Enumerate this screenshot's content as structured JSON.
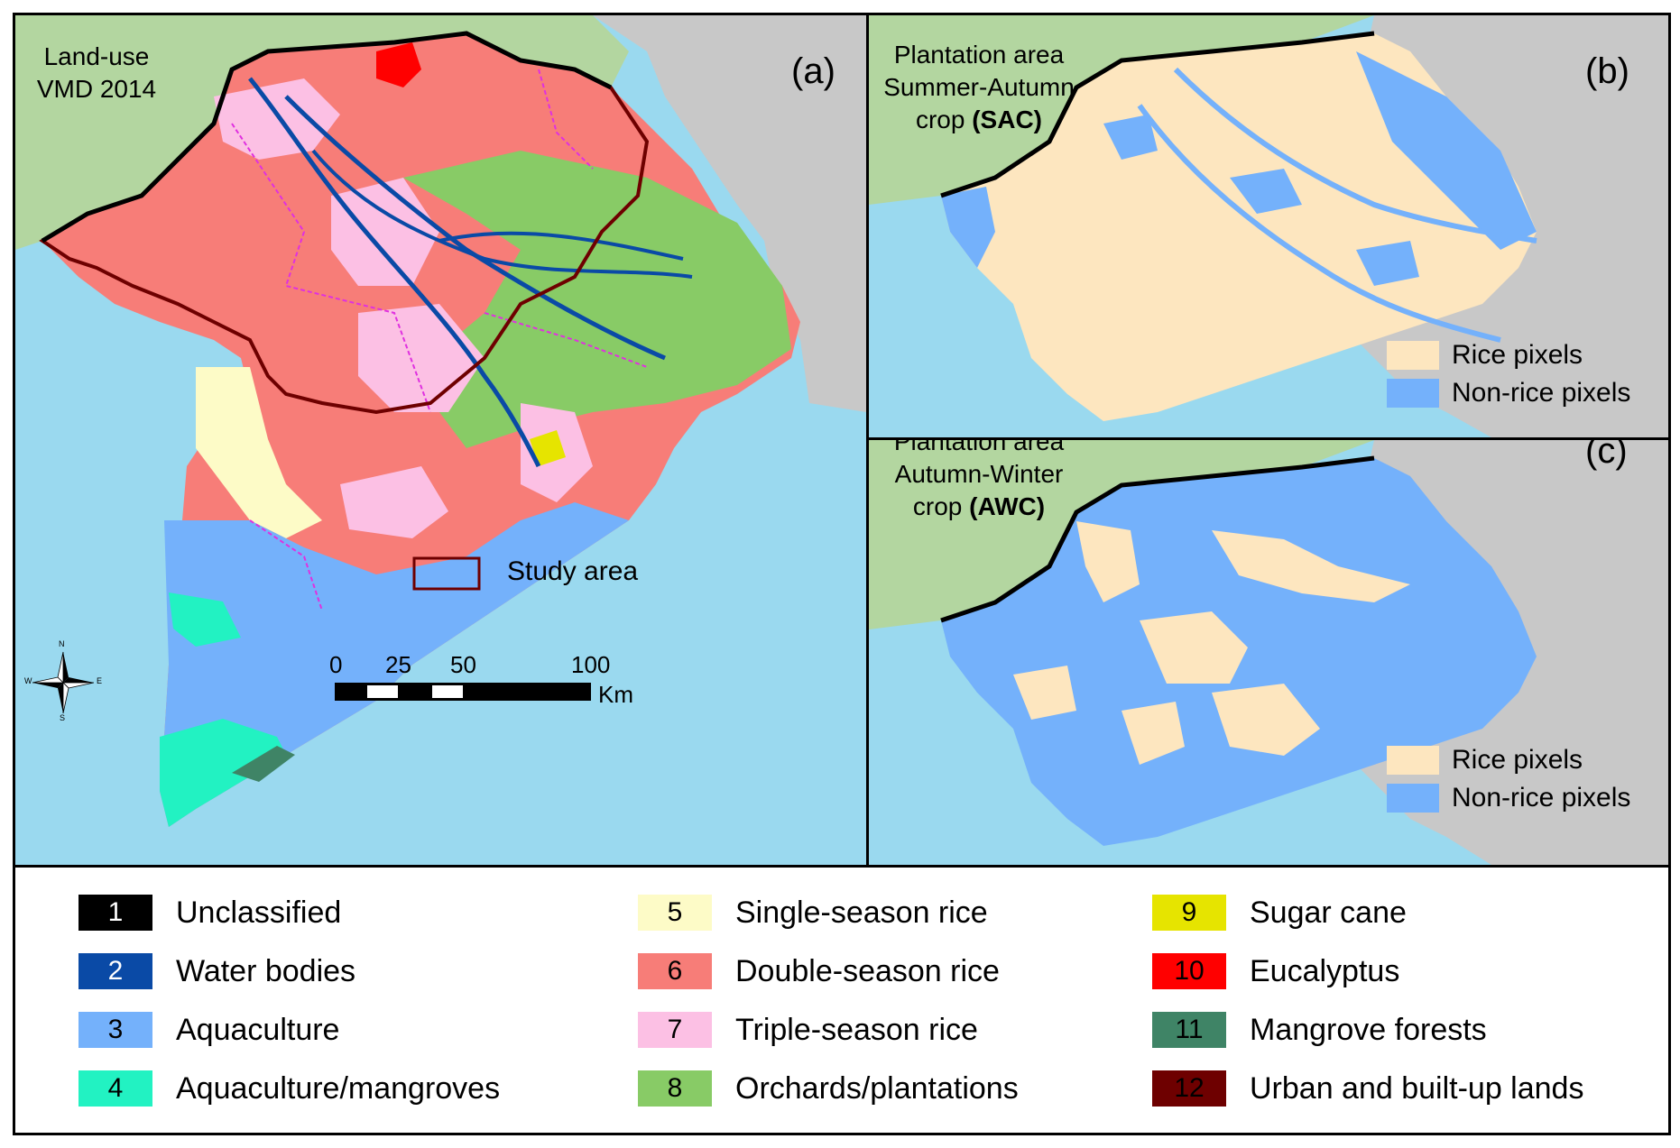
{
  "panel_a": {
    "title_line1": "Land-use",
    "title_line2": "VMD 2014",
    "label": "(a)",
    "study_area_label": "Study area",
    "scale": {
      "ticks": [
        "0",
        "25",
        "50",
        "100"
      ],
      "unit": "Km"
    },
    "compass": {
      "n": "N",
      "s": "S",
      "e": "E",
      "w": "W"
    }
  },
  "panel_b": {
    "title_line1": "Plantation area",
    "title_line2": "Summer-Autumn",
    "title_line3_prefix": "crop ",
    "title_line3_bold": "(SAC)",
    "label": "(b)",
    "legend": [
      {
        "label": "Rice pixels",
        "color": "#fde6bf"
      },
      {
        "label": "Non-rice pixels",
        "color": "#74b1fb"
      }
    ]
  },
  "panel_c": {
    "title_line1": "Plantation area",
    "title_line2": "Autumn-Winter",
    "title_line3_prefix": "crop ",
    "title_line3_bold": "(AWC)",
    "label": "(c)",
    "legend": [
      {
        "label": "Rice pixels",
        "color": "#fde6bf"
      },
      {
        "label": "Non-rice pixels",
        "color": "#74b1fb"
      }
    ]
  },
  "legend": [
    {
      "num": "1",
      "label": "Unclassified",
      "color": "#000000",
      "numcolor": "#ffffff"
    },
    {
      "num": "2",
      "label": "Water bodies",
      "color": "#0a4aa6",
      "numcolor": "#ffffff"
    },
    {
      "num": "3",
      "label": "Aquaculture",
      "color": "#74b1fb",
      "numcolor": "#000000"
    },
    {
      "num": "4",
      "label": "Aquaculture/mangroves",
      "color": "#22f2c2",
      "numcolor": "#000000"
    },
    {
      "num": "5",
      "label": "Single-season rice",
      "color": "#fdfbc7",
      "numcolor": "#000000"
    },
    {
      "num": "6",
      "label": "Double-season rice",
      "color": "#f77d78",
      "numcolor": "#000000"
    },
    {
      "num": "7",
      "label": "Triple-season rice",
      "color": "#fcc0e4",
      "numcolor": "#000000"
    },
    {
      "num": "8",
      "label": "Orchards/plantations",
      "color": "#88cb66",
      "numcolor": "#000000"
    },
    {
      "num": "9",
      "label": "Sugar cane",
      "color": "#e6e400",
      "numcolor": "#000000"
    },
    {
      "num": "10",
      "label": "Eucalyptus",
      "color": "#ff0000",
      "numcolor": "#000000"
    },
    {
      "num": "11",
      "label": "Mangrove forests",
      "color": "#3f8466",
      "numcolor": "#000000"
    },
    {
      "num": "12",
      "label": "Urban and built-up lands",
      "color": "#6e0000",
      "numcolor": "#000000"
    }
  ],
  "colors": {
    "sea": "#9ad9ef",
    "land_outside": "#b3d6a0",
    "grey_land": "#c8c8c8",
    "study_area": "#6e0000",
    "province_lines": "#e030e0"
  }
}
